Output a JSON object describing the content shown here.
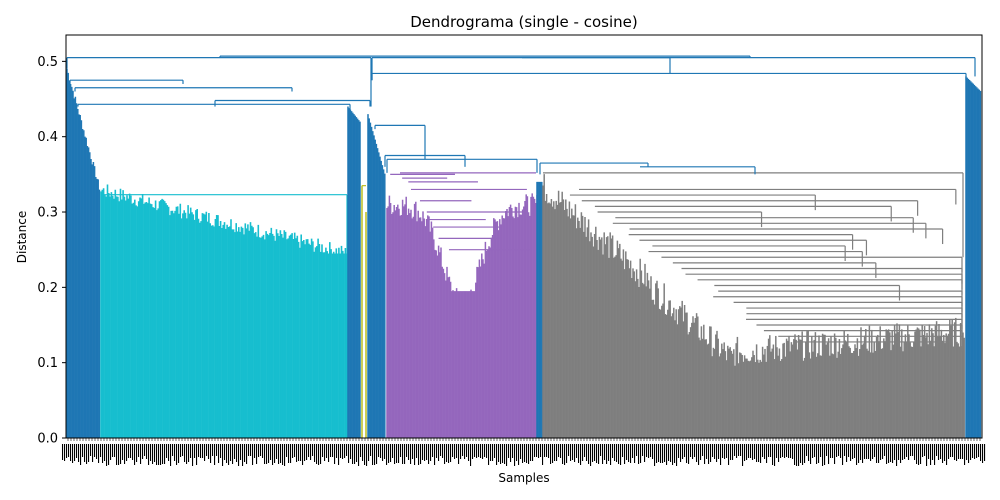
{
  "chart_data": {
    "type": "dendrogram",
    "title": "Dendrograma (single - cosine)",
    "xlabel": "Samples",
    "ylabel": "Distance",
    "ylim": [
      0.0,
      0.535
    ],
    "yticks": [
      "0.0",
      "0.1",
      "0.2",
      "0.3",
      "0.4",
      "0.5"
    ],
    "grid": false,
    "colors": {
      "link_default": "#1f77b4",
      "cluster_cyan": "#17becf",
      "cluster_olive": "#bcbd22",
      "cluster_purple": "#9467bd",
      "cluster_gray": "#7f7f7f",
      "axis": "#000000"
    },
    "clusters": [
      {
        "color": "cluster_cyan",
        "merge_height": 0.323,
        "leaf_min": 0.245,
        "shoulder": 0.31
      },
      {
        "color": "cluster_olive",
        "merge_height": 0.335,
        "leaf_min": 0.0,
        "shoulder": 0.33
      },
      {
        "color": "cluster_purple",
        "merge_height": 0.352,
        "leaf_min": 0.195,
        "shoulder": 0.34
      },
      {
        "color": "cluster_gray",
        "merge_height": 0.352,
        "leaf_min": 0.09,
        "shoulder": 0.33
      }
    ],
    "top_links": [
      0.507,
      0.505,
      0.484,
      0.475,
      0.465,
      0.448,
      0.443,
      0.415,
      0.375,
      0.37,
      0.365,
      0.36
    ]
  }
}
